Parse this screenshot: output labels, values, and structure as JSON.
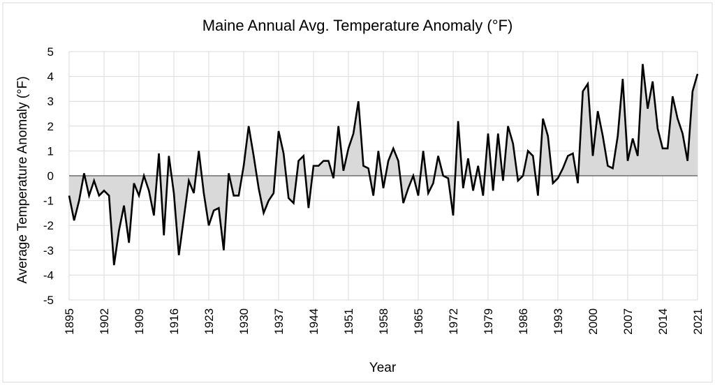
{
  "chart_data": {
    "type": "area",
    "title": "Maine Annual Avg. Temperature Anomaly (°F)",
    "xlabel": "Year",
    "ylabel": "Average Temperature Anomaly (°F)",
    "xlim": [
      1895,
      2021
    ],
    "ylim": [
      -5,
      5
    ],
    "y_ticks": [
      5,
      4,
      3,
      2,
      1,
      0,
      -1,
      -2,
      -3,
      -4,
      -5
    ],
    "x_ticks": [
      1895,
      1902,
      1909,
      1916,
      1923,
      1930,
      1937,
      1944,
      1951,
      1958,
      1965,
      1972,
      1979,
      1986,
      1993,
      2000,
      2007,
      2014,
      2021
    ],
    "grid": true,
    "legend": "none",
    "colors": {
      "line": "#000000",
      "fill": "#d9d9d9",
      "grid": "#d9d9d9",
      "border": "#d9d9d9"
    },
    "x": [
      1895,
      1896,
      1897,
      1898,
      1899,
      1900,
      1901,
      1902,
      1903,
      1904,
      1905,
      1906,
      1907,
      1908,
      1909,
      1910,
      1911,
      1912,
      1913,
      1914,
      1915,
      1916,
      1917,
      1918,
      1919,
      1920,
      1921,
      1922,
      1923,
      1924,
      1925,
      1926,
      1927,
      1928,
      1929,
      1930,
      1931,
      1932,
      1933,
      1934,
      1935,
      1936,
      1937,
      1938,
      1939,
      1940,
      1941,
      1942,
      1943,
      1944,
      1945,
      1946,
      1947,
      1948,
      1949,
      1950,
      1951,
      1952,
      1953,
      1954,
      1955,
      1956,
      1957,
      1958,
      1959,
      1960,
      1961,
      1962,
      1963,
      1964,
      1965,
      1966,
      1967,
      1968,
      1969,
      1970,
      1971,
      1972,
      1973,
      1974,
      1975,
      1976,
      1977,
      1978,
      1979,
      1980,
      1981,
      1982,
      1983,
      1984,
      1985,
      1986,
      1987,
      1988,
      1989,
      1990,
      1991,
      1992,
      1993,
      1994,
      1995,
      1996,
      1997,
      1998,
      1999,
      2000,
      2001,
      2002,
      2003,
      2004,
      2005,
      2006,
      2007,
      2008,
      2009,
      2010,
      2011,
      2012,
      2013,
      2014,
      2015,
      2016,
      2017,
      2018,
      2019,
      2020,
      2021
    ],
    "values": [
      -0.8,
      -1.8,
      -1.0,
      0.1,
      -0.8,
      -0.2,
      -0.8,
      -0.6,
      -0.8,
      -3.6,
      -2.2,
      -1.2,
      -2.7,
      -0.3,
      -0.8,
      0.0,
      -0.6,
      -1.6,
      0.9,
      -2.4,
      0.8,
      -0.7,
      -3.2,
      -1.7,
      -0.2,
      -0.7,
      1.0,
      -0.7,
      -2.0,
      -1.4,
      -1.3,
      -3.0,
      0.1,
      -0.8,
      -0.8,
      0.4,
      2.0,
      0.8,
      -0.5,
      -1.5,
      -1.0,
      -0.7,
      1.8,
      0.9,
      -0.9,
      -1.1,
      0.6,
      0.8,
      -1.3,
      0.4,
      0.4,
      0.6,
      0.6,
      -0.1,
      2.0,
      0.2,
      1.1,
      1.7,
      3.0,
      0.4,
      0.3,
      -0.8,
      1.0,
      -0.5,
      0.6,
      1.1,
      0.6,
      -1.1,
      -0.5,
      0.0,
      -0.8,
      1.0,
      -0.7,
      -0.3,
      0.8,
      0.0,
      -0.1,
      -1.6,
      2.2,
      -0.5,
      0.7,
      -0.6,
      0.4,
      -0.8,
      1.7,
      -0.6,
      1.7,
      -0.2,
      2.0,
      1.3,
      -0.2,
      0.0,
      1.0,
      0.8,
      -0.8,
      2.3,
      1.6,
      -0.3,
      -0.1,
      0.3,
      0.8,
      0.9,
      -0.3,
      3.4,
      3.7,
      0.8,
      2.6,
      1.6,
      0.4,
      0.3,
      1.6,
      3.9,
      0.6,
      1.5,
      0.8,
      4.5,
      2.7,
      3.8,
      1.9,
      1.1,
      1.1,
      3.2,
      2.3,
      1.7,
      0.6,
      3.4,
      4.1
    ]
  }
}
